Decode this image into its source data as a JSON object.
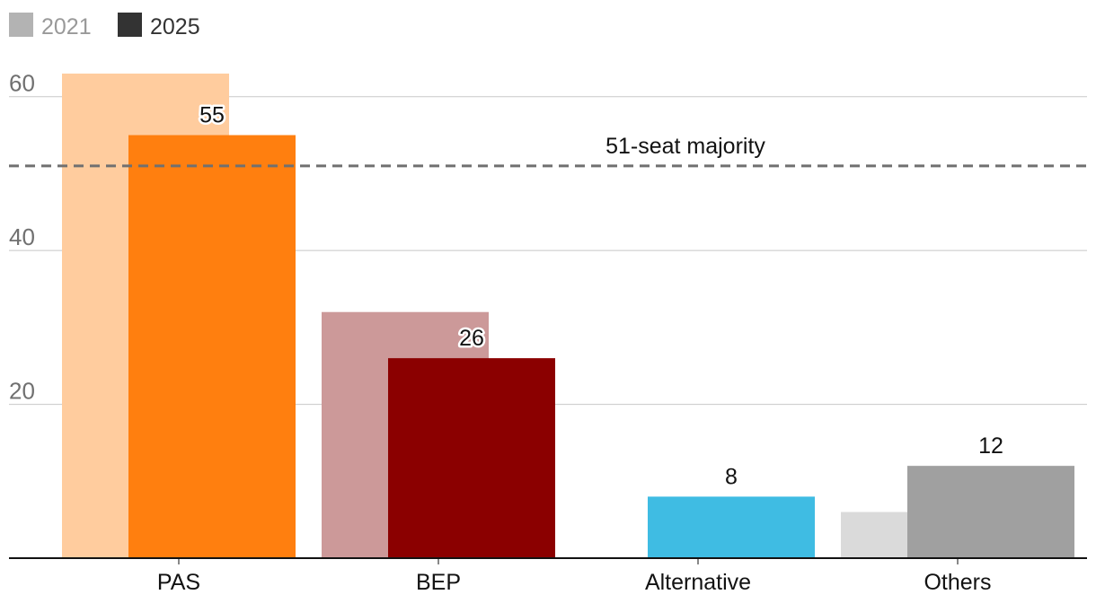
{
  "chart_data": {
    "type": "bar",
    "categories": [
      "PAS",
      "BEP",
      "Alternative",
      "Others"
    ],
    "series": [
      {
        "name": "2021",
        "values": [
          63,
          32,
          null,
          6
        ],
        "colors": [
          "#ffcc9e",
          "#cc9999",
          "#cccccc",
          "#dadada"
        ]
      },
      {
        "name": "2025",
        "values": [
          55,
          26,
          8,
          12
        ],
        "colors": [
          "#ff7f0f",
          "#8b0000",
          "#3fbce3",
          "#a0a0a0"
        ],
        "labels": [
          "55",
          "26",
          "8",
          "12"
        ]
      }
    ],
    "legend": [
      {
        "label": "2021",
        "color": "#b3b3b3",
        "text_color": "#999999"
      },
      {
        "label": "2025",
        "color": "#333333",
        "text_color": "#333333"
      }
    ],
    "legend_position": "top-left",
    "ylim": [
      0,
      63
    ],
    "yticks": [
      20,
      40,
      60
    ],
    "ytick_labels": [
      "20",
      "40",
      "60"
    ],
    "grid": true,
    "reference_line": {
      "value": 51,
      "label": "51-seat majority",
      "style": "dashed",
      "color": "#707070"
    },
    "title": "",
    "xlabel": "",
    "ylabel": ""
  }
}
